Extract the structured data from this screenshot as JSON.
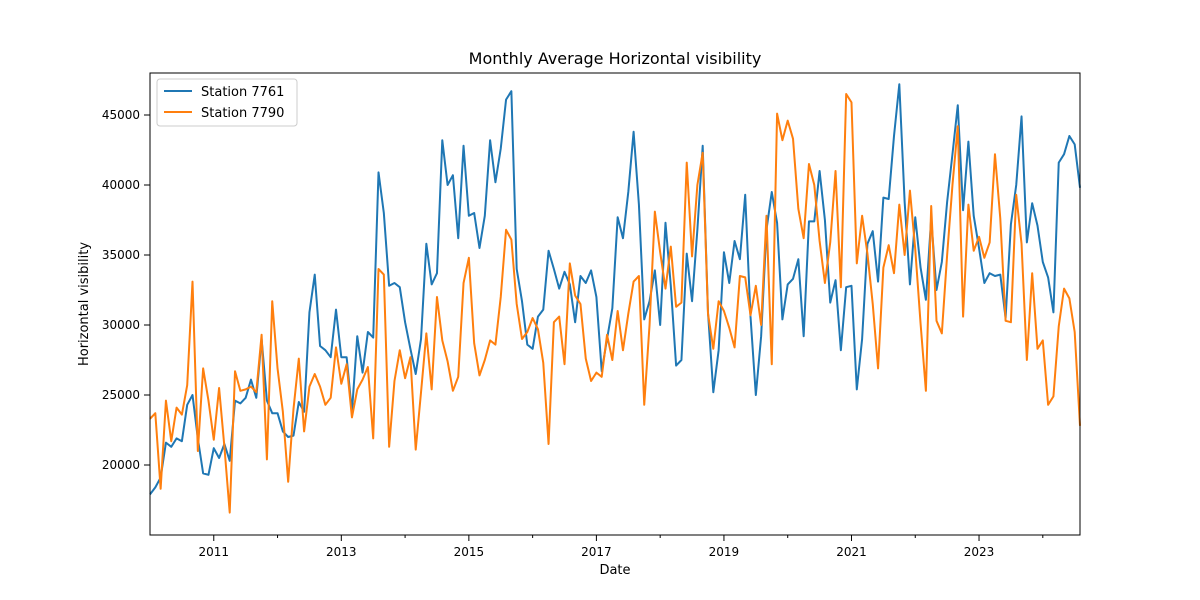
{
  "chart_data": {
    "type": "line",
    "title": "Monthly Average Horizontal visibility",
    "xlabel": "Date",
    "ylabel": "Horizontal visibility",
    "x_start": "2010-01",
    "xlim": [
      "2010-01",
      "2024-08"
    ],
    "ylim": [
      15000,
      48000
    ],
    "xticks": [
      {
        "label": "2011",
        "date": "2011-01"
      },
      {
        "label": "2013",
        "date": "2013-01"
      },
      {
        "label": "2015",
        "date": "2015-01"
      },
      {
        "label": "2017",
        "date": "2017-01"
      },
      {
        "label": "2019",
        "date": "2019-01"
      },
      {
        "label": "2021",
        "date": "2021-01"
      },
      {
        "label": "2023",
        "date": "2023-01"
      }
    ],
    "minor_xticks": [
      "2012-01",
      "2014-01",
      "2016-01",
      "2018-01",
      "2020-01",
      "2022-01",
      "2024-01"
    ],
    "yticks": [
      20000,
      25000,
      30000,
      35000,
      40000,
      45000
    ],
    "ytick_labels": [
      "20000",
      "25000",
      "30000",
      "35000",
      "40000",
      "45000"
    ],
    "legend_position": "top-left",
    "grid": false,
    "series": [
      {
        "name": "Station 7761",
        "color": "#1f77b4",
        "values": [
          17900,
          18400,
          19100,
          21600,
          21300,
          21900,
          21700,
          24300,
          25000,
          21900,
          19400,
          19300,
          21200,
          20500,
          21500,
          20300,
          24600,
          24400,
          24800,
          26100,
          24800,
          29000,
          24600,
          23700,
          23700,
          22400,
          22000,
          22100,
          24500,
          23800,
          30900,
          33600,
          28500,
          28200,
          27700,
          31100,
          27700,
          27700,
          23800,
          29200,
          26600,
          29500,
          29100,
          40900,
          38000,
          32800,
          33000,
          32700,
          30200,
          28300,
          26500,
          29000,
          35800,
          32900,
          33700,
          43200,
          40000,
          40700,
          36200,
          42800,
          37800,
          38000,
          35500,
          37800,
          43200,
          40200,
          42600,
          46100,
          46700,
          34000,
          31700,
          28600,
          28300,
          30600,
          31100,
          35300,
          34000,
          32600,
          33800,
          32900,
          30200,
          33500,
          33000,
          33900,
          32000,
          26700,
          29000,
          31200,
          37700,
          36200,
          39500,
          43800,
          38600,
          30400,
          31700,
          33900,
          30000,
          37300,
          32800,
          27100,
          27500,
          35100,
          31700,
          36800,
          42800,
          30900,
          25200,
          28200,
          35200,
          33000,
          36000,
          34700,
          39300,
          30600,
          25000,
          29200,
          36800,
          39500,
          37300,
          30400,
          32900,
          33300,
          34700,
          29200,
          37400,
          37400,
          41000,
          37500,
          31600,
          33200,
          28200,
          32700,
          32800,
          25400,
          29000,
          35800,
          36700,
          33100,
          39100,
          39000,
          43500,
          47200,
          38800,
          32900,
          37700,
          34100,
          31800,
          37600,
          32500,
          34500,
          38800,
          42200,
          45700,
          38200,
          43100,
          37800,
          35500,
          33000,
          33700,
          33500,
          33600,
          30500,
          37200,
          40000,
          44900,
          35900,
          38700,
          37100,
          34500,
          33400,
          30900,
          41600,
          42200,
          43500,
          42900,
          39800
        ]
      },
      {
        "name": "Station 7790",
        "color": "#ff7f0e",
        "values": [
          23300,
          23700,
          18300,
          24600,
          21700,
          24100,
          23600,
          25700,
          33100,
          21000,
          26900,
          24600,
          21800,
          25500,
          21300,
          16600,
          26700,
          25300,
          25400,
          25600,
          25200,
          29300,
          20400,
          31700,
          26900,
          23800,
          18800,
          24000,
          27600,
          22400,
          25600,
          26500,
          25600,
          24300,
          24800,
          28400,
          25800,
          27200,
          23400,
          25400,
          26100,
          27000,
          21900,
          34000,
          33600,
          21300,
          26000,
          28200,
          26200,
          27700,
          21100,
          25200,
          29400,
          25400,
          32000,
          28900,
          27400,
          25300,
          26300,
          33000,
          34800,
          28700,
          26400,
          27500,
          28900,
          28600,
          32000,
          36800,
          36100,
          31500,
          29000,
          29500,
          30500,
          29700,
          27300,
          21500,
          30200,
          30600,
          27200,
          34400,
          32100,
          31500,
          27600,
          26000,
          26600,
          26300,
          29300,
          27500,
          31000,
          28200,
          30800,
          33100,
          33500,
          24300,
          30000,
          38100,
          35200,
          32600,
          35600,
          31300,
          31600,
          41600,
          34900,
          40000,
          42300,
          30800,
          28300,
          31700,
          31000,
          29800,
          28400,
          33500,
          33400,
          30700,
          32800,
          30000,
          37800,
          27200,
          45100,
          43200,
          44600,
          43300,
          38300,
          36200,
          41500,
          40000,
          36000,
          33000,
          35900,
          41000,
          32700,
          46500,
          45900,
          34400,
          37800,
          35100,
          31500,
          26900,
          34100,
          35700,
          33700,
          38600,
          35000,
          39600,
          35400,
          30100,
          25300,
          38500,
          30300,
          29400,
          35000,
          40000,
          44200,
          30600,
          38600,
          35300,
          36300,
          34800,
          35900,
          42200,
          37600,
          30300,
          30200,
          39300,
          35800,
          27500,
          33700,
          28300,
          28900,
          24300,
          24900,
          29900,
          32600,
          31900,
          29500,
          22800
        ]
      }
    ]
  }
}
